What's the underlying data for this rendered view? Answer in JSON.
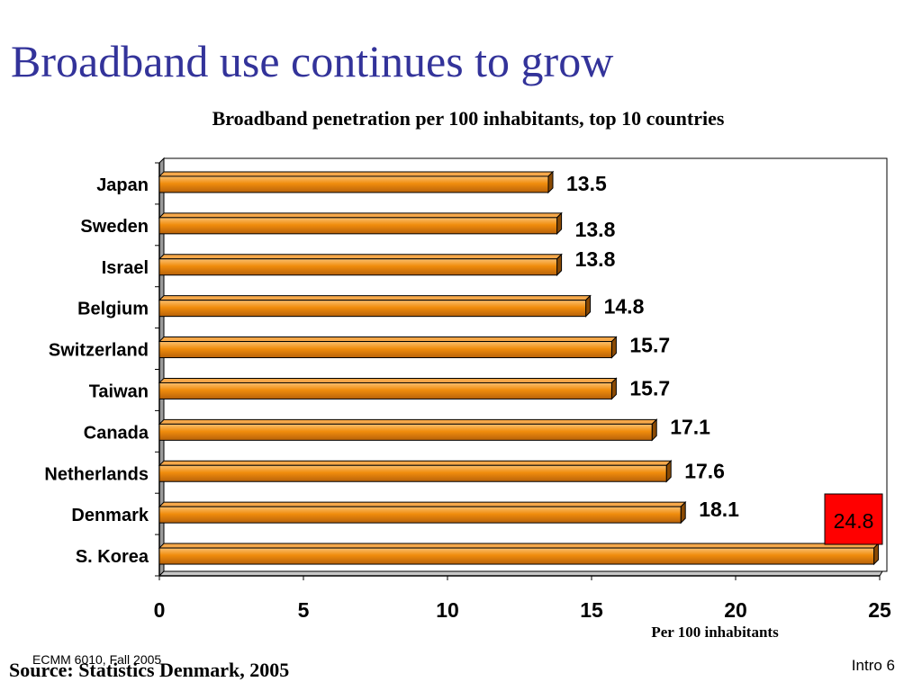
{
  "slide": {
    "title": "Broadband use continues to grow",
    "footer_course": "ECMM 6010, Fall 2005",
    "source": "Source: Statistics Denmark, 2005",
    "page": "Intro 6"
  },
  "chart_data": {
    "type": "bar",
    "orientation": "horizontal",
    "title": "Broadband penetration per 100 inhabitants, top 10 countries",
    "xlabel": "Per 100 inhabitants",
    "ylabel": "",
    "categories": [
      "Japan",
      "Sweden",
      "Israel",
      "Belgium",
      "Switzerland",
      "Taiwan",
      "Canada",
      "Netherlands",
      "Denmark",
      "S. Korea"
    ],
    "values": [
      13.5,
      13.8,
      13.8,
      14.8,
      15.7,
      15.7,
      17.1,
      17.6,
      18.1,
      24.8
    ],
    "value_labels": [
      "13.5",
      "13.8",
      "13.8",
      "14.8",
      "15.7",
      "15.7",
      "17.1",
      "17.6",
      "18.1",
      "24.8"
    ],
    "xlim": [
      0,
      25
    ],
    "xticks": [
      0,
      5,
      10,
      15,
      20,
      25
    ],
    "grid": false,
    "legend": "none",
    "colors": {
      "bar": "#f08c0c",
      "bar_highlight": "#fbc070",
      "bar_shadow": "#8a4a04",
      "highlight_label_bg": "#ff0000"
    }
  }
}
